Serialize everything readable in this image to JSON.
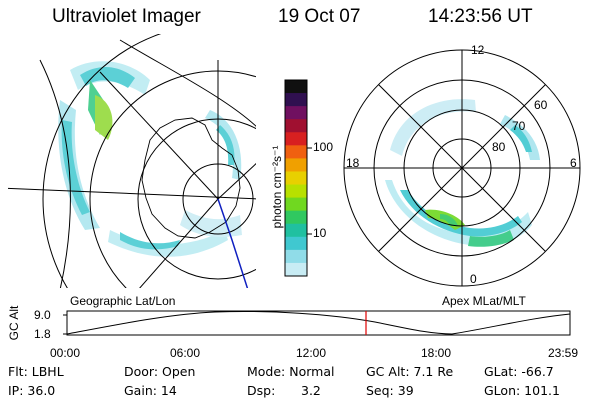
{
  "header": {
    "title": "Ultraviolet Imager",
    "date": "19 Oct 07",
    "time": "14:23:56 UT"
  },
  "colorbar": {
    "unit_label": "photon cm⁻²s⁻¹",
    "ticks": [
      "100",
      "10"
    ],
    "colors": [
      "#101010",
      "#301050",
      "#701060",
      "#a01030",
      "#d82020",
      "#f06010",
      "#f0a000",
      "#e8d000",
      "#b8e000",
      "#70d820",
      "#30c860",
      "#20c0a0",
      "#40c8d0",
      "#90dce8",
      "#c8ecf4"
    ]
  },
  "left_map": {
    "caption": "Geographic Lat/Lon"
  },
  "right_map": {
    "caption": "Apex MLat/MLT",
    "lat_labels": [
      "60",
      "70",
      "80"
    ],
    "mlt_labels": {
      "top": "12",
      "left": "18",
      "right": "6",
      "bottom": "0"
    }
  },
  "timeline": {
    "axis_label": "GC Alt",
    "y_ticks": [
      "9.0",
      "1.8"
    ],
    "x_ticks": [
      "00:00",
      "06:00",
      "12:00",
      "18:00",
      "23:59"
    ],
    "marker_color": "#e00000"
  },
  "info": {
    "flt": "Flt: LBHL",
    "ip": "IP: 36.0",
    "door": "Door: Open",
    "gain": "Gain: 14",
    "mode": "Mode: Normal",
    "dsp_label": "Dsp:",
    "dsp_value": "3.2",
    "gc_alt": "GC Alt: 7.1 Re",
    "seq": "Seq: 39",
    "glat": "GLat: -66.7",
    "glon": "GLon: 101.1"
  }
}
